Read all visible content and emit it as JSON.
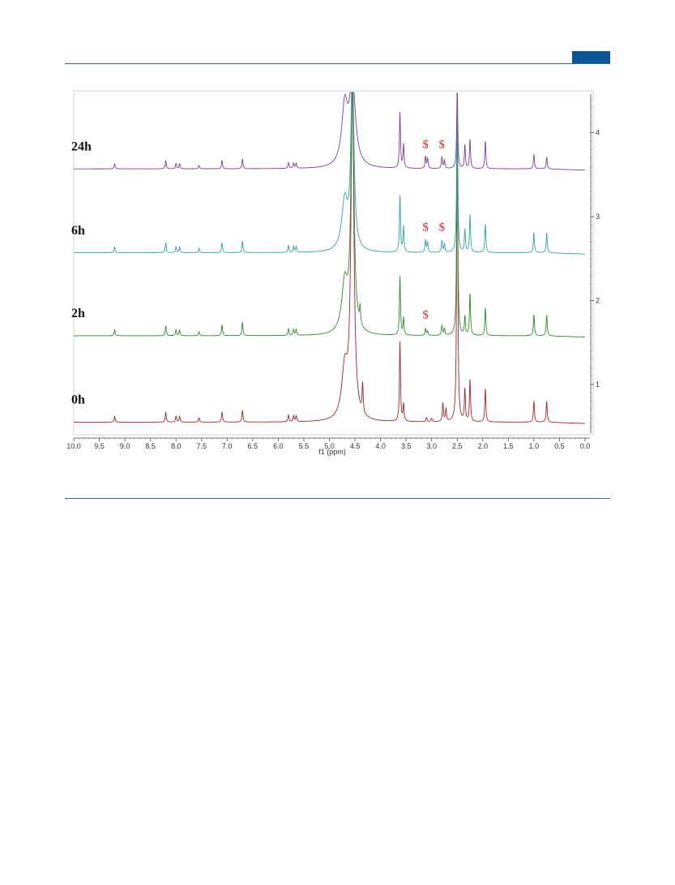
{
  "header": {
    "badge_color": "#0b5796",
    "rule_color": "#2f6e93"
  },
  "chart_data": {
    "type": "line",
    "xlabel": "f1 (ppm)",
    "xlim": [
      10.0,
      0.0
    ],
    "x_reversed": true,
    "x_ticks": [
      "10.0",
      "9.5",
      "9.0",
      "8.5",
      "8.0",
      "7.5",
      "7.0",
      "6.5",
      "6.0",
      "5.5",
      "5.0",
      "4.5",
      "4.0",
      "3.5",
      "3.0",
      "2.5",
      "2.0",
      "1.5",
      "1.0",
      "0.5",
      "0.0"
    ],
    "right_axis_ticks": [
      "1",
      "2",
      "3",
      "4"
    ],
    "ylim": [
      0.4,
      4.5
    ],
    "grid": false,
    "series": [
      {
        "name": "0h",
        "color": "#a3262c",
        "baseline": 0.55,
        "peaks": [
          [
            9.2,
            0.07
          ],
          [
            8.2,
            0.12
          ],
          [
            8.0,
            0.07
          ],
          [
            7.93,
            0.07
          ],
          [
            7.55,
            0.05
          ],
          [
            7.1,
            0.12
          ],
          [
            6.7,
            0.14
          ],
          [
            5.8,
            0.08
          ],
          [
            5.7,
            0.07
          ],
          [
            5.65,
            0.07
          ],
          [
            4.7,
            0.6
          ],
          [
            4.55,
            3.9
          ],
          [
            4.35,
            0.35
          ],
          [
            3.62,
            0.95
          ],
          [
            3.55,
            0.2
          ],
          [
            3.1,
            0.05
          ],
          [
            3.0,
            0.04
          ],
          [
            2.78,
            0.22
          ],
          [
            2.72,
            0.15
          ],
          [
            2.5,
            3.9
          ],
          [
            2.35,
            0.38
          ],
          [
            2.25,
            0.5
          ],
          [
            1.95,
            0.4
          ],
          [
            1.0,
            0.25
          ],
          [
            0.75,
            0.25
          ]
        ]
      },
      {
        "name": "2h",
        "color": "#2e8b2e",
        "baseline": 1.58,
        "peaks": [
          [
            9.2,
            0.07
          ],
          [
            8.2,
            0.12
          ],
          [
            8.0,
            0.07
          ],
          [
            7.93,
            0.07
          ],
          [
            7.55,
            0.05
          ],
          [
            7.1,
            0.13
          ],
          [
            6.7,
            0.16
          ],
          [
            5.8,
            0.08
          ],
          [
            5.7,
            0.07
          ],
          [
            5.65,
            0.07
          ],
          [
            4.7,
            0.6
          ],
          [
            4.55,
            3.0
          ],
          [
            4.4,
            0.2
          ],
          [
            3.62,
            0.7
          ],
          [
            3.55,
            0.2
          ],
          [
            3.12,
            0.08
          ],
          [
            3.08,
            0.05
          ],
          [
            2.8,
            0.12
          ],
          [
            2.75,
            0.08
          ],
          [
            2.5,
            2.9
          ],
          [
            2.35,
            0.22
          ],
          [
            2.25,
            0.5
          ],
          [
            1.95,
            0.33
          ],
          [
            1.0,
            0.25
          ],
          [
            0.75,
            0.25
          ]
        ]
      },
      {
        "name": "6h",
        "color": "#2fa3a5",
        "baseline": 2.57,
        "peaks": [
          [
            9.2,
            0.07
          ],
          [
            8.2,
            0.12
          ],
          [
            8.0,
            0.07
          ],
          [
            7.93,
            0.07
          ],
          [
            7.55,
            0.05
          ],
          [
            7.1,
            0.12
          ],
          [
            6.7,
            0.14
          ],
          [
            5.8,
            0.08
          ],
          [
            5.7,
            0.07
          ],
          [
            5.65,
            0.07
          ],
          [
            4.7,
            0.6
          ],
          [
            4.55,
            2.2
          ],
          [
            3.62,
            0.67
          ],
          [
            3.55,
            0.3
          ],
          [
            3.12,
            0.15
          ],
          [
            3.08,
            0.12
          ],
          [
            2.8,
            0.14
          ],
          [
            2.75,
            0.1
          ],
          [
            2.5,
            1.98
          ],
          [
            2.35,
            0.27
          ],
          [
            2.25,
            0.45
          ],
          [
            1.95,
            0.34
          ],
          [
            1.0,
            0.24
          ],
          [
            0.75,
            0.24
          ]
        ]
      },
      {
        "name": "24h",
        "color": "#7a3ea0",
        "baseline": 3.57,
        "peaks": [
          [
            9.2,
            0.06
          ],
          [
            8.2,
            0.1
          ],
          [
            8.0,
            0.06
          ],
          [
            7.93,
            0.06
          ],
          [
            7.55,
            0.04
          ],
          [
            7.1,
            0.1
          ],
          [
            6.7,
            0.12
          ],
          [
            5.8,
            0.07
          ],
          [
            5.7,
            0.06
          ],
          [
            5.65,
            0.06
          ],
          [
            4.7,
            0.7
          ],
          [
            4.55,
            1.0
          ],
          [
            3.62,
            0.66
          ],
          [
            3.55,
            0.28
          ],
          [
            3.12,
            0.14
          ],
          [
            3.08,
            0.12
          ],
          [
            2.8,
            0.14
          ],
          [
            2.75,
            0.1
          ],
          [
            2.5,
            0.98
          ],
          [
            2.35,
            0.28
          ],
          [
            2.25,
            0.35
          ],
          [
            1.95,
            0.33
          ],
          [
            1.0,
            0.17
          ],
          [
            0.75,
            0.14
          ]
        ]
      }
    ],
    "annotations": [
      {
        "text": "$",
        "x": 3.12,
        "y": 3.82,
        "color": "#e8212b"
      },
      {
        "text": "$",
        "x": 2.8,
        "y": 3.82,
        "color": "#e8212b"
      },
      {
        "text": "$",
        "x": 3.12,
        "y": 2.83,
        "color": "#e8212b"
      },
      {
        "text": "$",
        "x": 2.8,
        "y": 2.83,
        "color": "#e8212b"
      },
      {
        "text": "$",
        "x": 3.12,
        "y": 1.79,
        "color": "#e8212b"
      }
    ]
  }
}
